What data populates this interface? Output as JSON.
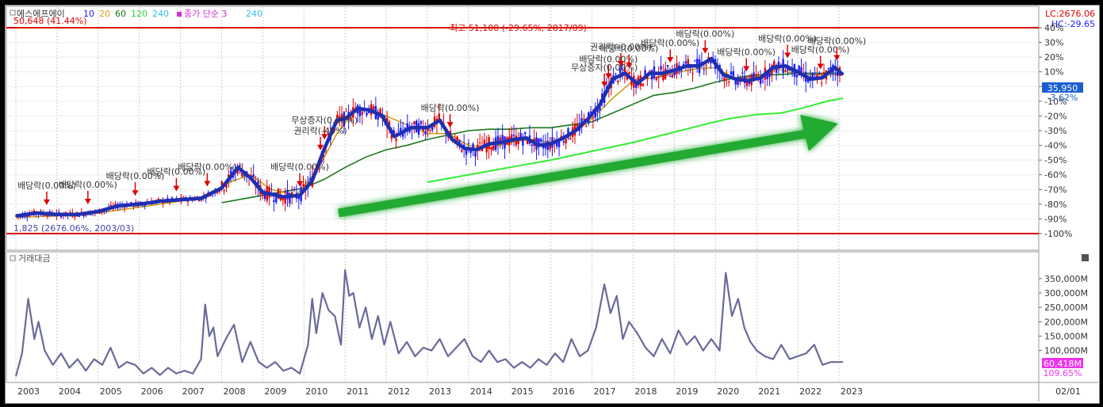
{
  "header": {
    "indicator_icon": "square-icon",
    "stock_name": "에스에프에이",
    "ma_periods": [
      {
        "label": "10",
        "color": "#1a1aff"
      },
      {
        "label": "20",
        "color": "#d4a017"
      },
      {
        "label": "60",
        "color": "#1a7a1a"
      },
      {
        "label": "120",
        "color": "#33cc33"
      },
      {
        "label": "240",
        "color": "#33bbee"
      }
    ],
    "ma_type_label": "종가 단순 3",
    "ma_type_color": "#cc33cc",
    "extra_period": "240",
    "extra_color": "#33bbee"
  },
  "top_right": {
    "lc": "LC:2676.06",
    "hc": "HC:-29.65"
  },
  "price_panel": {
    "high_line_label": "50,648 (41.44%)",
    "low_line_label": "1,825 (2676.06%, 2003/03)",
    "peak_note": "최고 51,100 (-29.65%, 2017/09)",
    "current_price": "35,950",
    "current_change": "-3.62%"
  },
  "volume_panel": {
    "title": "거래대금",
    "icon": "square-icon",
    "current_value": "60,418M",
    "current_pct": "109.65%"
  },
  "date_label": "02/01",
  "events": [
    {
      "label": "배당락(0.00%)",
      "x": 2003.75
    },
    {
      "label": "배당락(0.00%)",
      "x": 2004.75
    },
    {
      "label": "배당락(0.00%)",
      "x": 2005.9
    },
    {
      "label": "배당락(0.00%)",
      "x": 2006.9
    },
    {
      "label": "배당락(0.00%)",
      "x": 2007.65
    },
    {
      "label": "배당락(0.00%)",
      "x": 2009.9
    },
    {
      "label": "권리락(-45%)",
      "x": 2010.4
    },
    {
      "label": "무상증자(0.00%)",
      "x": 2010.5
    },
    {
      "label": "배당락(0.00%)",
      "x": 2013.55
    },
    {
      "label": "배당락(0.00%)",
      "x": 2017.4
    },
    {
      "label": "무상증자(0.00%)",
      "x": 2017.3
    },
    {
      "label": "배당락(0.00%)",
      "x": 2017.9
    },
    {
      "label": "권리락(-0.00%)",
      "x": 2017.7
    },
    {
      "label": "배당락(0.00%)",
      "x": 2018.9
    },
    {
      "label": "배당락(0.00%)",
      "x": 2019.75
    },
    {
      "label": "배당락(0.00%)",
      "x": 2020.75
    },
    {
      "label": "배당락(0.00%)",
      "x": 2021.75
    },
    {
      "label": "배당락(0.00%)",
      "x": 2022.55
    },
    {
      "label": "배당락(0.00%)",
      "x": 2022.95
    }
  ],
  "chart_data": [
    {
      "type": "line",
      "title": "",
      "x_ticks": [
        "2003",
        "2004",
        "2005",
        "2006",
        "2007",
        "2008",
        "2009",
        "2010",
        "2011",
        "2012",
        "2013",
        "2014",
        "2015",
        "2016",
        "2017",
        "2018",
        "2019",
        "2020",
        "2021",
        "2022",
        "2023"
      ],
      "y_ticks": [
        "40%",
        "30%",
        "20%",
        "10%",
        "0%",
        "-10%",
        "-20%",
        "-30%",
        "-40%",
        "-50%",
        "-60%",
        "-70%",
        "-80%",
        "-90%",
        "-100%"
      ],
      "ylim": [
        -100,
        40
      ],
      "grid": true,
      "series": [
        {
          "name": "10",
          "color": "#1a1aff",
          "x": [
            2003.0,
            2003.5,
            2004.0,
            2004.5,
            2005.0,
            2005.5,
            2006.0,
            2006.5,
            2007.0,
            2007.5,
            2008.0,
            2008.4,
            2008.7,
            2009.0,
            2009.5,
            2009.9,
            2010.2,
            2010.5,
            2010.8,
            2011.0,
            2011.3,
            2011.6,
            2011.9,
            2012.2,
            2012.6,
            2013.0,
            2013.3,
            2013.6,
            2013.9,
            2014.2,
            2014.5,
            2014.8,
            2015.1,
            2015.4,
            2015.7,
            2016.0,
            2016.3,
            2016.6,
            2016.9,
            2017.2,
            2017.5,
            2017.8,
            2018.1,
            2018.4,
            2018.7,
            2019.0,
            2019.3,
            2019.6,
            2019.9,
            2020.2,
            2020.5,
            2020.8,
            2021.1,
            2021.4,
            2021.7,
            2022.0,
            2022.3,
            2022.6,
            2022.9,
            2023.1
          ],
          "values": [
            -88,
            -86,
            -87,
            -87,
            -85,
            -81,
            -80,
            -78,
            -77,
            -76,
            -69,
            -55,
            -62,
            -72,
            -75,
            -74,
            -64,
            -42,
            -23,
            -22,
            -15,
            -16,
            -20,
            -34,
            -28,
            -28,
            -23,
            -36,
            -42,
            -43,
            -39,
            -38,
            -36,
            -35,
            -40,
            -39,
            -35,
            -30,
            -22,
            -12,
            5,
            9,
            2,
            9,
            9,
            11,
            14,
            14,
            19,
            8,
            5,
            4,
            6,
            13,
            14,
            10,
            5,
            6,
            13,
            8
          ]
        },
        {
          "name": "20",
          "color": "#d4a017",
          "x": [
            2003.0,
            2004.0,
            2005.0,
            2006.0,
            2007.0,
            2007.7,
            2008.2,
            2008.7,
            2009.2,
            2009.8,
            2010.3,
            2010.8,
            2011.2,
            2011.6,
            2012.0,
            2012.5,
            2013.0,
            2013.5,
            2014.0,
            2014.5,
            2015.0,
            2015.5,
            2016.0,
            2016.5,
            2017.0,
            2017.5,
            2018.0,
            2018.5,
            2019.0,
            2019.5,
            2020.0,
            2020.5,
            2021.0,
            2021.5,
            2022.0,
            2022.5,
            2023.1
          ],
          "values": [
            -89,
            -88,
            -86,
            -82,
            -78,
            -74,
            -65,
            -60,
            -70,
            -74,
            -58,
            -32,
            -18,
            -15,
            -20,
            -26,
            -32,
            -32,
            -40,
            -42,
            -38,
            -36,
            -38,
            -33,
            -22,
            -8,
            4,
            6,
            9,
            12,
            13,
            5,
            7,
            12,
            8,
            8,
            8
          ]
        },
        {
          "name": "60",
          "color": "#1a7a1a",
          "x": [
            2008.0,
            2009.0,
            2010.0,
            2010.5,
            2011.0,
            2011.5,
            2012.0,
            2012.5,
            2013.0,
            2013.5,
            2014.0,
            2014.5,
            2015.0,
            2015.5,
            2016.0,
            2016.5,
            2017.0,
            2017.5,
            2018.0,
            2018.5,
            2019.0,
            2019.5,
            2020.0,
            2020.5,
            2021.0,
            2021.5,
            2022.0,
            2022.5,
            2023.1
          ],
          "values": [
            -79,
            -74,
            -69,
            -63,
            -55,
            -48,
            -43,
            -40,
            -36,
            -33,
            -30,
            -29,
            -29,
            -28,
            -28,
            -26,
            -24,
            -18,
            -12,
            -6,
            -4,
            -1,
            3,
            6,
            8,
            8,
            9,
            9,
            9
          ]
        },
        {
          "name": "120",
          "color": "#33ee33",
          "x": [
            2013.0,
            2014.0,
            2015.0,
            2016.0,
            2017.0,
            2018.0,
            2019.0,
            2019.7,
            2020.3,
            2021.0,
            2021.6,
            2022.2,
            2022.7,
            2023.1
          ],
          "values": [
            -65,
            -60,
            -55,
            -50,
            -44,
            -38,
            -31,
            -26,
            -22,
            -19,
            -18,
            -14,
            -10,
            -8
          ]
        }
      ]
    },
    {
      "type": "line",
      "title": "",
      "y_ticks": [
        "350,000M",
        "300,000M",
        "250,000M",
        "200,000M",
        "150,000M",
        "100,000M"
      ],
      "ylim": [
        0,
        380000
      ],
      "series": [
        {
          "name": "거래대금",
          "color": "#6a6a9a",
          "x": [
            2003.0,
            2003.15,
            2003.3,
            2003.45,
            2003.55,
            2003.7,
            2003.9,
            2004.1,
            2004.3,
            2004.5,
            2004.7,
            2004.9,
            2005.1,
            2005.3,
            2005.5,
            2005.7,
            2005.9,
            2006.1,
            2006.3,
            2006.5,
            2006.7,
            2006.9,
            2007.1,
            2007.3,
            2007.5,
            2007.6,
            2007.7,
            2007.8,
            2007.9,
            2008.1,
            2008.3,
            2008.5,
            2008.7,
            2008.9,
            2009.1,
            2009.3,
            2009.5,
            2009.7,
            2009.9,
            2010.1,
            2010.2,
            2010.3,
            2010.45,
            2010.6,
            2010.75,
            2010.9,
            2011.0,
            2011.1,
            2011.2,
            2011.35,
            2011.5,
            2011.65,
            2011.8,
            2011.95,
            2012.1,
            2012.3,
            2012.5,
            2012.7,
            2012.9,
            2013.1,
            2013.3,
            2013.5,
            2013.7,
            2013.9,
            2014.1,
            2014.3,
            2014.5,
            2014.7,
            2014.9,
            2015.1,
            2015.3,
            2015.5,
            2015.7,
            2015.9,
            2016.1,
            2016.3,
            2016.5,
            2016.7,
            2016.9,
            2017.1,
            2017.3,
            2017.45,
            2017.6,
            2017.75,
            2017.9,
            2018.1,
            2018.3,
            2018.5,
            2018.7,
            2018.9,
            2019.1,
            2019.3,
            2019.5,
            2019.7,
            2019.9,
            2020.1,
            2020.25,
            2020.4,
            2020.55,
            2020.7,
            2020.85,
            2021.0,
            2021.2,
            2021.4,
            2021.6,
            2021.8,
            2022.0,
            2022.2,
            2022.4,
            2022.6,
            2022.8,
            2023.1
          ],
          "values": [
            10000,
            90000,
            280000,
            140000,
            200000,
            100000,
            50000,
            90000,
            40000,
            70000,
            30000,
            70000,
            50000,
            110000,
            40000,
            60000,
            50000,
            20000,
            40000,
            15000,
            40000,
            20000,
            30000,
            20000,
            70000,
            260000,
            150000,
            180000,
            80000,
            140000,
            190000,
            60000,
            130000,
            60000,
            40000,
            60000,
            30000,
            40000,
            20000,
            120000,
            280000,
            160000,
            300000,
            240000,
            220000,
            120000,
            380000,
            290000,
            300000,
            180000,
            250000,
            140000,
            220000,
            120000,
            200000,
            90000,
            130000,
            80000,
            110000,
            100000,
            140000,
            80000,
            110000,
            140000,
            80000,
            60000,
            100000,
            60000,
            70000,
            40000,
            60000,
            40000,
            70000,
            50000,
            90000,
            60000,
            140000,
            80000,
            100000,
            180000,
            330000,
            230000,
            290000,
            140000,
            200000,
            160000,
            110000,
            80000,
            140000,
            90000,
            170000,
            120000,
            150000,
            100000,
            140000,
            100000,
            370000,
            220000,
            280000,
            180000,
            130000,
            100000,
            80000,
            70000,
            120000,
            70000,
            80000,
            90000,
            120000,
            50000,
            60000,
            60000
          ]
        }
      ]
    }
  ]
}
